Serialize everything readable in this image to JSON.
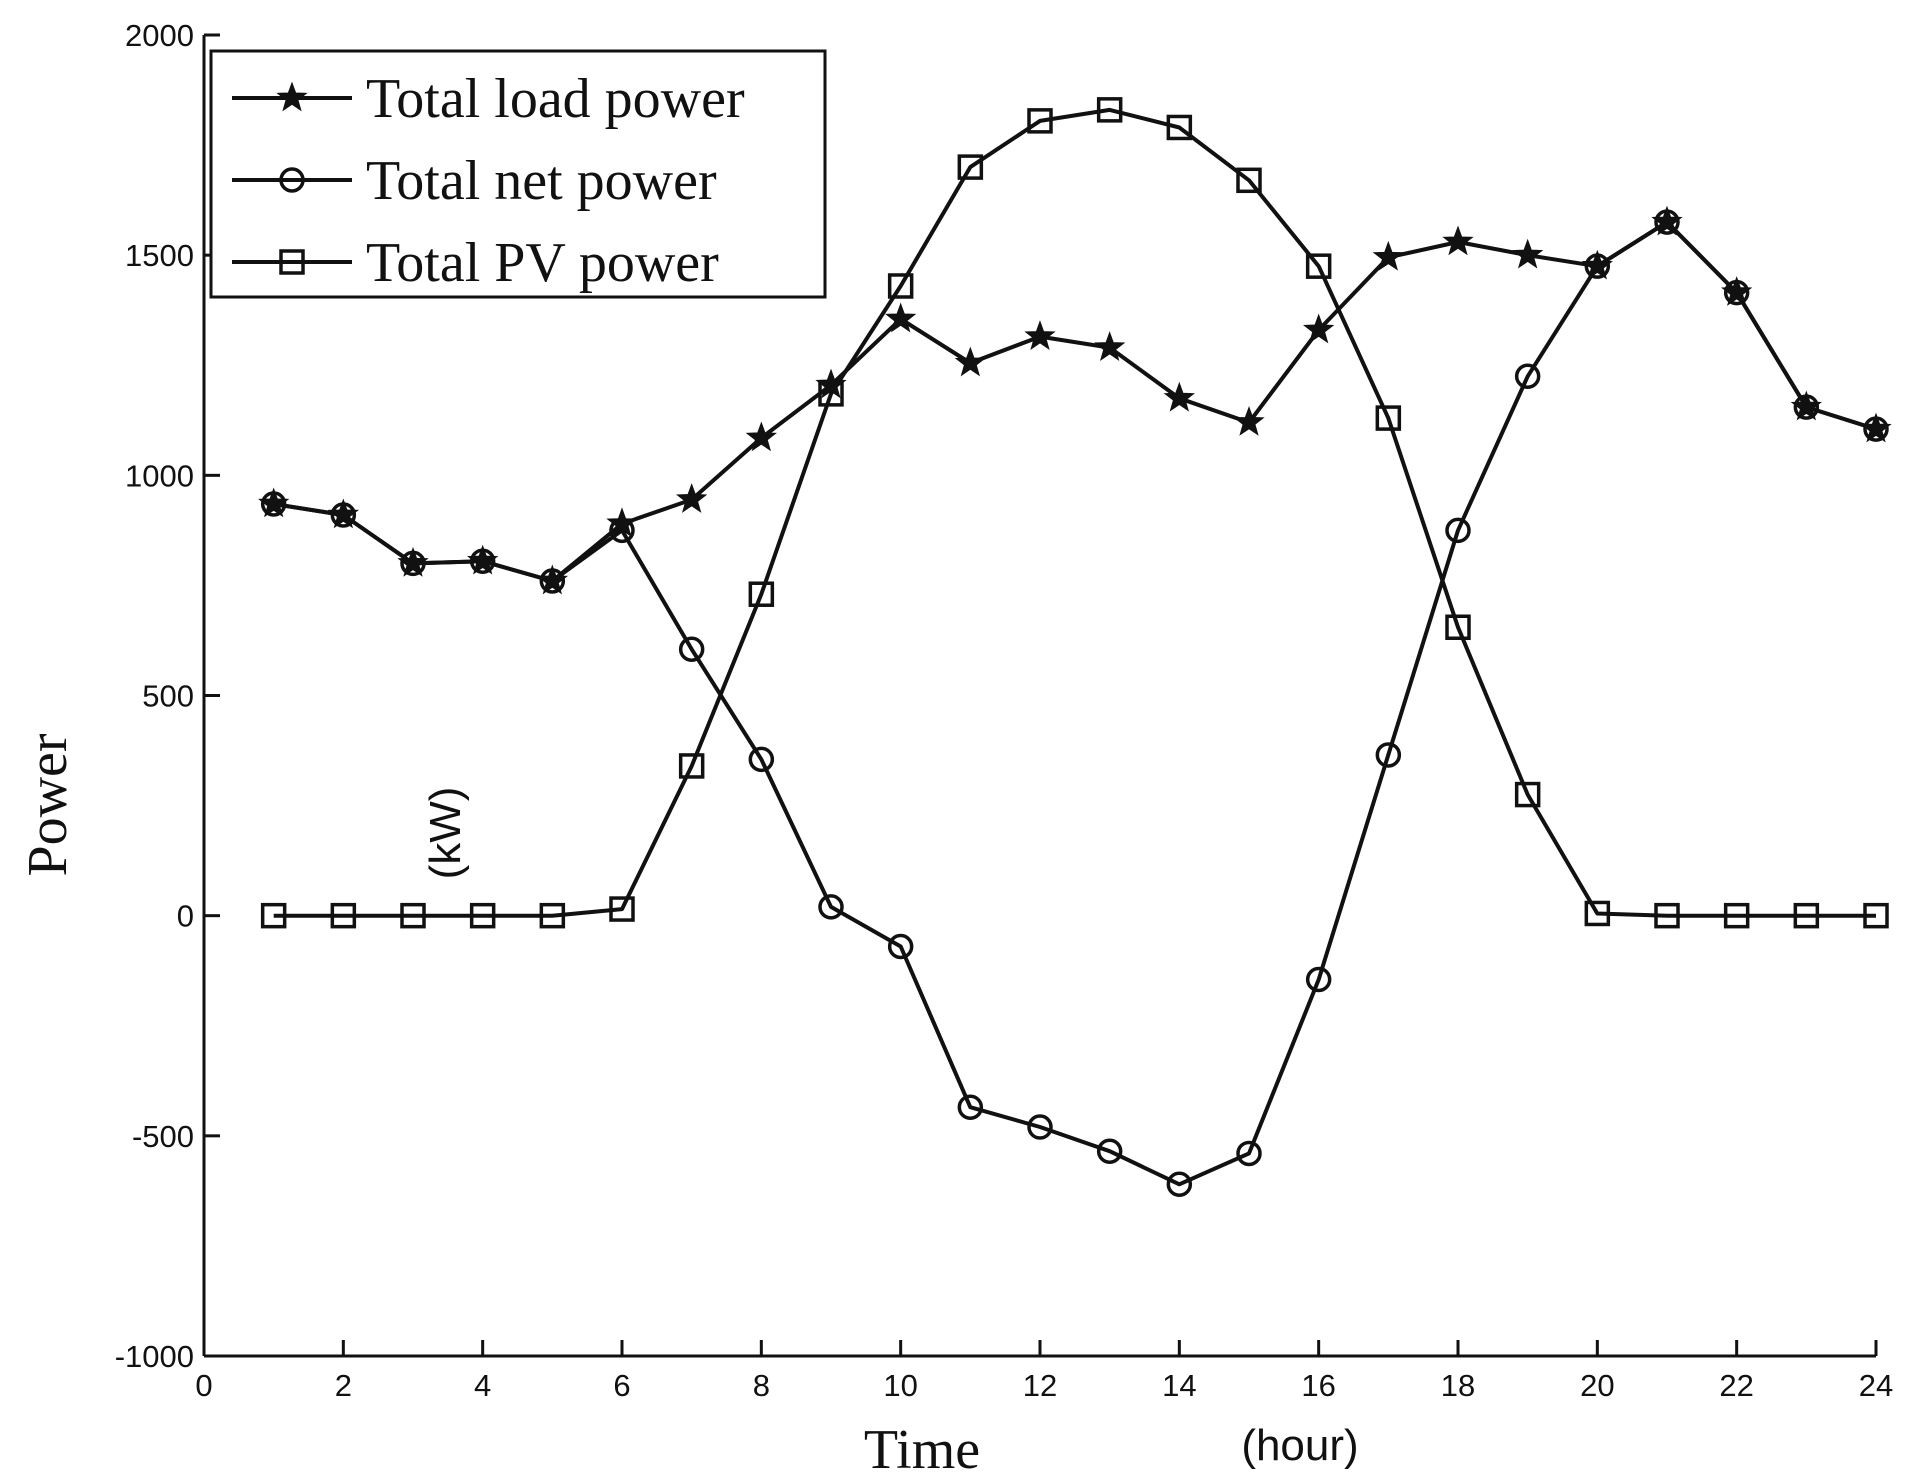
{
  "chart_data": {
    "type": "line",
    "title": "",
    "xlabel": "Time",
    "xlabel_unit": "(hour)",
    "ylabel": "Power",
    "ylabel_unit": "(kW)",
    "xlim": [
      0,
      24
    ],
    "ylim": [
      -1000,
      2000
    ],
    "xticks": [
      0,
      2,
      4,
      6,
      8,
      10,
      12,
      14,
      16,
      18,
      20,
      22,
      24
    ],
    "yticks": [
      -1000,
      -500,
      0,
      500,
      1000,
      1500,
      2000
    ],
    "grid": false,
    "legend_position": "top-left",
    "x": [
      1,
      2,
      3,
      4,
      5,
      6,
      7,
      8,
      9,
      10,
      11,
      12,
      13,
      14,
      15,
      16,
      17,
      18,
      19,
      20,
      21,
      22,
      23,
      24
    ],
    "series": [
      {
        "name": "Total load power",
        "marker": "star",
        "values": [
          935,
          910,
          800,
          805,
          760,
          890,
          945,
          1085,
          1205,
          1355,
          1255,
          1315,
          1290,
          1175,
          1120,
          1330,
          1495,
          1530,
          1500,
          1475,
          1575,
          1415,
          1155,
          1105
        ]
      },
      {
        "name": "Total net power",
        "marker": "circle",
        "values": [
          935,
          910,
          800,
          805,
          760,
          875,
          605,
          355,
          20,
          -70,
          -435,
          -480,
          -535,
          -610,
          -540,
          -145,
          365,
          875,
          1225,
          1475,
          1575,
          1415,
          1155,
          1105
        ]
      },
      {
        "name": "Total PV power",
        "marker": "square",
        "values": [
          0,
          0,
          0,
          0,
          0,
          15,
          340,
          730,
          1185,
          1430,
          1700,
          1805,
          1830,
          1790,
          1670,
          1475,
          1130,
          655,
          275,
          5,
          0,
          0,
          0,
          0
        ]
      }
    ]
  }
}
